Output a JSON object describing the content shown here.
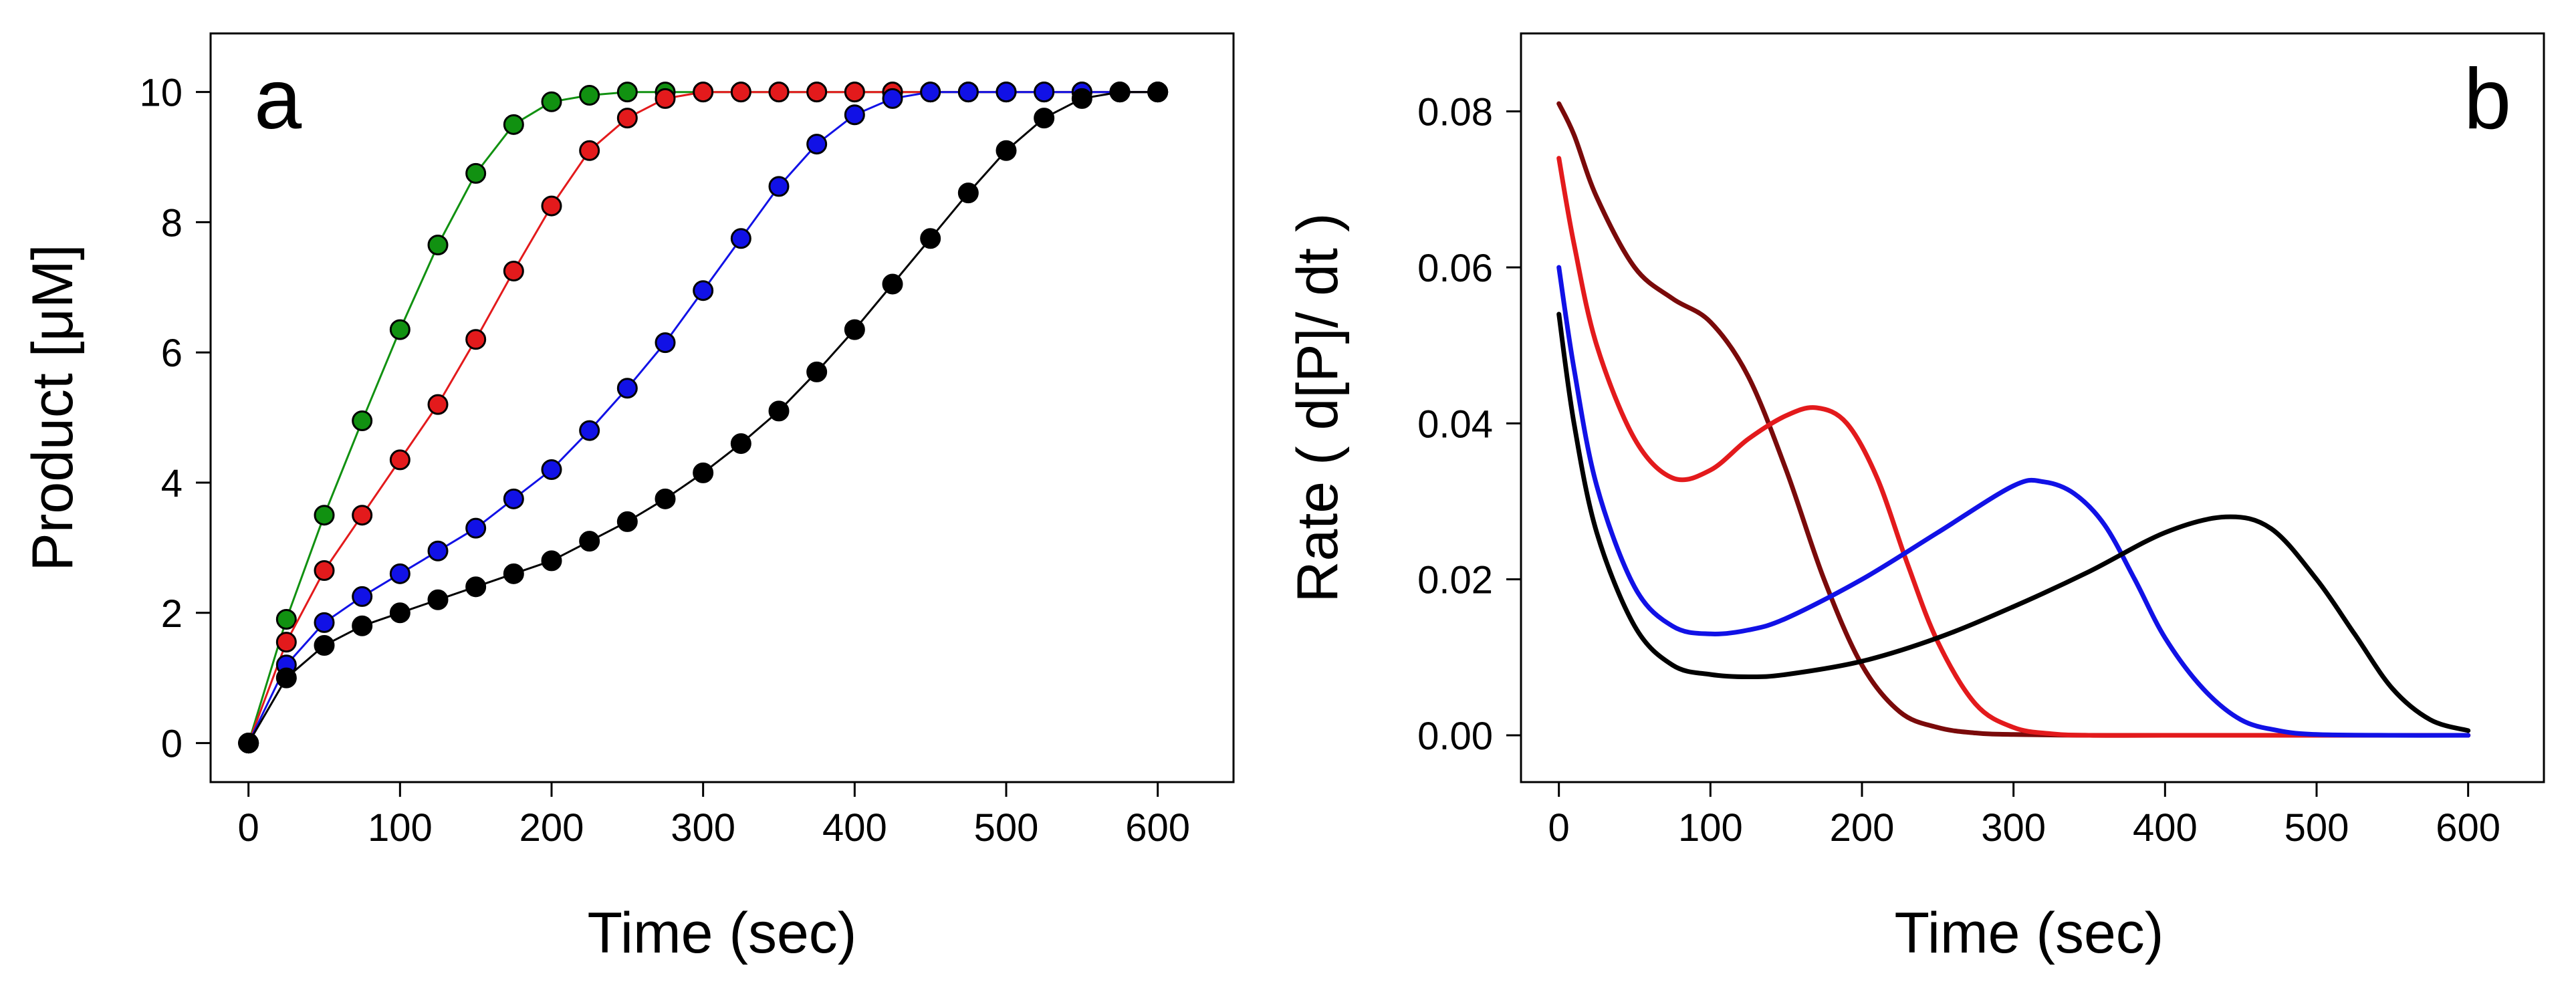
{
  "chart_data": [
    {
      "type": "line",
      "panel_label": "a",
      "xlabel": "Time  (sec)",
      "ylabel": "Product  [μM]",
      "xlim": [
        -25,
        650
      ],
      "ylim": [
        -0.6,
        10.9
      ],
      "xticks": [
        0,
        100,
        200,
        300,
        400,
        500,
        600
      ],
      "yticks": [
        0,
        2,
        4,
        6,
        8,
        10
      ],
      "markers": true,
      "x": [
        0,
        25,
        50,
        75,
        100,
        125,
        150,
        175,
        200,
        225,
        250,
        275,
        300,
        325,
        350,
        375,
        400,
        425,
        450,
        475,
        500,
        525,
        550,
        575,
        600
      ],
      "series": [
        {
          "name": "green",
          "color": "#119111",
          "values": [
            0,
            1.9,
            3.5,
            4.95,
            6.35,
            7.65,
            8.75,
            9.5,
            9.85,
            9.95,
            10,
            10,
            10,
            10,
            10,
            10,
            10,
            10,
            10,
            10,
            10,
            10,
            10,
            10,
            10
          ]
        },
        {
          "name": "red",
          "color": "#e31a1c",
          "values": [
            0,
            1.55,
            2.65,
            3.5,
            4.35,
            5.2,
            6.2,
            7.25,
            8.25,
            9.1,
            9.6,
            9.9,
            10,
            10,
            10,
            10,
            10,
            10,
            10,
            10,
            10,
            10,
            10,
            10,
            10
          ]
        },
        {
          "name": "blue",
          "color": "#1111e6",
          "values": [
            0,
            1.2,
            1.85,
            2.25,
            2.6,
            2.95,
            3.3,
            3.75,
            4.2,
            4.8,
            5.45,
            6.15,
            6.95,
            7.75,
            8.55,
            9.2,
            9.65,
            9.9,
            10,
            10,
            10,
            10,
            10,
            10,
            10
          ]
        },
        {
          "name": "black",
          "color": "#000000",
          "values": [
            0,
            1.0,
            1.5,
            1.8,
            2.0,
            2.2,
            2.4,
            2.6,
            2.8,
            3.1,
            3.4,
            3.75,
            4.15,
            4.6,
            5.1,
            5.7,
            6.35,
            7.05,
            7.75,
            8.45,
            9.1,
            9.6,
            9.9,
            10,
            10
          ]
        }
      ]
    },
    {
      "type": "line",
      "panel_label": "b",
      "xlabel": "Time  (sec)",
      "ylabel": "Rate  ( d[P]/ dt )",
      "xlim": [
        -25,
        650
      ],
      "ylim": [
        -0.006,
        0.09
      ],
      "xticks": [
        0,
        100,
        200,
        300,
        400,
        500,
        600
      ],
      "yticks": [
        0.0,
        0.02,
        0.04,
        0.06,
        0.08
      ],
      "ytick_labels": [
        "0.00",
        "0.02",
        "0.04",
        "0.06",
        "0.08"
      ],
      "markers": false,
      "series": [
        {
          "name": "dark red",
          "color": "#7a0a0a",
          "x": [
            0,
            10,
            25,
            50,
            75,
            100,
            125,
            150,
            175,
            200,
            225,
            250,
            275,
            300,
            350,
            400,
            600
          ],
          "values": [
            0.081,
            0.077,
            0.069,
            0.06,
            0.056,
            0.053,
            0.046,
            0.034,
            0.02,
            0.009,
            0.003,
            0.001,
            0.0003,
            0.0001,
            0,
            0,
            0
          ]
        },
        {
          "name": "red",
          "color": "#e31a1c",
          "x": [
            0,
            10,
            25,
            50,
            75,
            100,
            125,
            150,
            170,
            190,
            210,
            230,
            250,
            275,
            300,
            325,
            350,
            400,
            600
          ],
          "values": [
            0.074,
            0.063,
            0.05,
            0.038,
            0.033,
            0.034,
            0.038,
            0.041,
            0.042,
            0.04,
            0.033,
            0.022,
            0.012,
            0.004,
            0.001,
            0.0002,
            0,
            0,
            0
          ]
        },
        {
          "name": "blue",
          "color": "#1111e6",
          "x": [
            0,
            10,
            25,
            50,
            75,
            100,
            125,
            150,
            200,
            250,
            300,
            320,
            340,
            360,
            380,
            400,
            425,
            450,
            475,
            500,
            550,
            600
          ],
          "values": [
            0.06,
            0.047,
            0.032,
            0.019,
            0.014,
            0.013,
            0.0135,
            0.015,
            0.02,
            0.026,
            0.032,
            0.0325,
            0.031,
            0.027,
            0.02,
            0.0125,
            0.006,
            0.002,
            0.0006,
            0.0001,
            0,
            0
          ]
        },
        {
          "name": "black",
          "color": "#000000",
          "x": [
            0,
            10,
            25,
            50,
            75,
            100,
            125,
            150,
            200,
            250,
            300,
            350,
            400,
            440,
            470,
            500,
            525,
            550,
            575,
            600
          ],
          "values": [
            0.054,
            0.04,
            0.026,
            0.014,
            0.009,
            0.0078,
            0.0075,
            0.0078,
            0.0095,
            0.0125,
            0.0165,
            0.021,
            0.026,
            0.028,
            0.0265,
            0.02,
            0.013,
            0.006,
            0.002,
            0.0006
          ]
        }
      ]
    }
  ]
}
